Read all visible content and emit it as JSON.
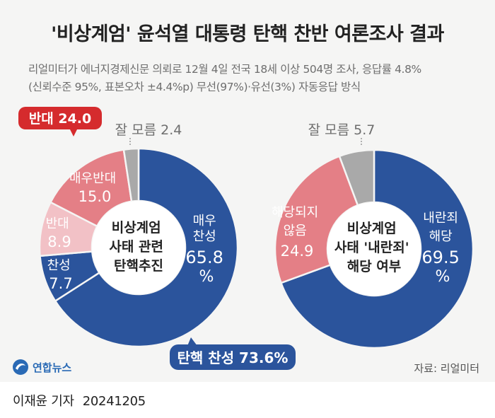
{
  "title": "'비상계엄' 윤석열 대통령 탄핵 찬반 여론조사 결과",
  "subtitle_line1": "리얼미터가 에너지경제신문 의뢰로 12월 4일 전국 18세 이상 504명 조사, 응답률 4.8%",
  "subtitle_line2": "(신뢰수준 95%, 표본오차 ±4.4%p) 무선(97%)·유선(3%) 자동응답 방식",
  "logo_text": "연합뉴스",
  "source": "자료: 리얼미터",
  "reporter": "이재윤 기자",
  "date": "20241205",
  "colors": {
    "blue": "#2b549c",
    "red": "#e47f86",
    "pink": "#f2c1c6",
    "gray": "#a9a9a9",
    "callout_red": "#d52b2d",
    "callout_blue": "#2b549c"
  },
  "chart_data": [
    {
      "type": "pie",
      "center_label": [
        "비상계엄",
        "사태 관련",
        "탄핵추진"
      ],
      "slices": [
        {
          "label": "매우 찬성",
          "value": 65.8,
          "display": [
            "매우",
            "찬성",
            "65.8",
            "%"
          ],
          "color": "#2b549c"
        },
        {
          "label": "찬성",
          "value": 7.7,
          "display": [
            "찬성",
            "7.7"
          ],
          "color": "#2b549c"
        },
        {
          "label": "반대",
          "value": 8.9,
          "display": [
            "반대",
            "8.9"
          ],
          "color": "#f2c1c6"
        },
        {
          "label": "매우반대",
          "value": 15.0,
          "display": [
            "매우반대",
            "15.0"
          ],
          "color": "#e47f86"
        },
        {
          "label": "잘 모름",
          "value": 2.4,
          "display": [
            "잘 모름 2.4"
          ],
          "color": "#a9a9a9"
        }
      ],
      "callouts": [
        {
          "text": "반대 24.0",
          "color": "#d52b2d"
        },
        {
          "text": "탄핵 찬성 73.6%",
          "color": "#2b549c"
        }
      ]
    },
    {
      "type": "pie",
      "center_label": [
        "비상계엄",
        "사태 '내란죄'",
        "해당 여부"
      ],
      "slices": [
        {
          "label": "내란죄 해당",
          "value": 69.5,
          "display": [
            "내란죄",
            "해당",
            "69.5",
            "%"
          ],
          "color": "#2b549c"
        },
        {
          "label": "해당되지 않음",
          "value": 24.9,
          "display": [
            "해당되지",
            "않음",
            "24.9"
          ],
          "color": "#e47f86"
        },
        {
          "label": "잘 모름",
          "value": 5.7,
          "display": [
            "잘 모름 5.7"
          ],
          "color": "#a9a9a9"
        }
      ]
    }
  ]
}
